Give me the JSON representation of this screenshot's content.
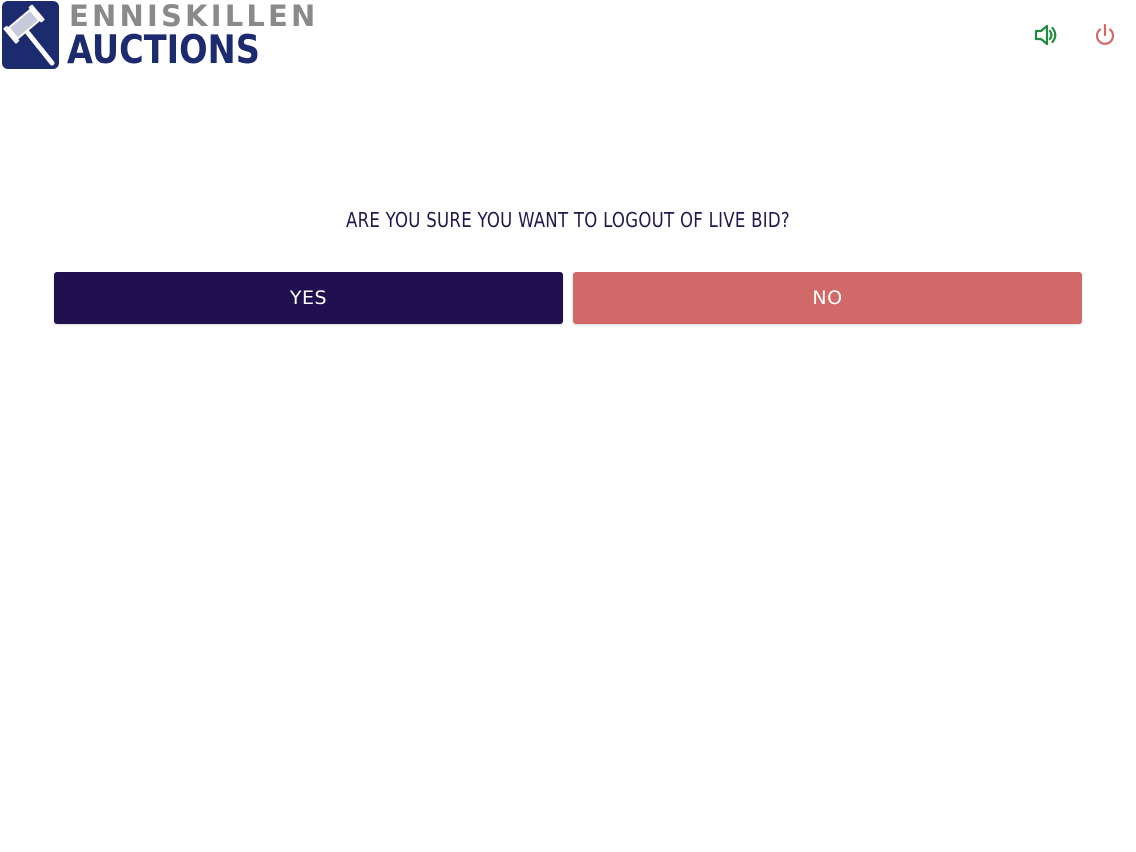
{
  "header": {
    "logo": {
      "line1": "ENNISKILLEN",
      "line2": "AUCTIONS",
      "icon": "gavel-icon",
      "colors": {
        "badge": "#1c2a6e",
        "line1": "#8a8a8a",
        "line2": "#1c2a6e"
      }
    },
    "actions": {
      "sound_icon": "speaker-icon",
      "sound_color": "#1e8a3c",
      "power_icon": "power-icon",
      "power_color": "#d16968"
    }
  },
  "dialog": {
    "question": "ARE YOU SURE YOU WANT TO LOGOUT OF LIVE BID?",
    "yes_label": "YES",
    "no_label": "NO",
    "colors": {
      "text": "#1f1a4d",
      "yes": "#211050",
      "no": "#d16968"
    }
  }
}
